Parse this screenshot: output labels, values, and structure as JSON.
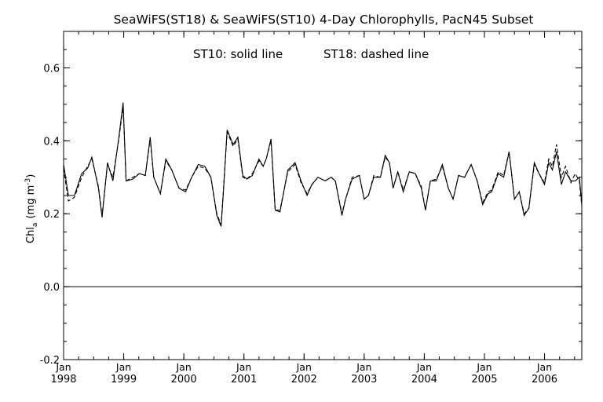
{
  "chart_data": {
    "type": "line",
    "title": "SeaWiFS(ST18) & SeaWiFS(ST10) 4-Day Chlorophylls, PacN45 Subset",
    "annotation_left": "ST10: solid line",
    "annotation_right": "ST18: dashed line",
    "ylabel_main": "Chl",
    "ylabel_sub": "a",
    "ylabel_units": "(mg m",
    "ylabel_exp": "-3",
    "ylabel_close": ")",
    "ylim": [
      -0.2,
      0.7
    ],
    "yticks": [
      -0.2,
      0.0,
      0.2,
      0.4,
      0.6
    ],
    "ytick_labels": [
      "-0.2",
      "0.0",
      "0.2",
      "0.4",
      "0.6"
    ],
    "xlim": [
      1998.0,
      2006.62
    ],
    "xticks": [
      {
        "x": 1998.0,
        "month": "Jan",
        "year": "1998"
      },
      {
        "x": 1999.0,
        "month": "Jan",
        "year": "1999"
      },
      {
        "x": 2000.0,
        "month": "Jan",
        "year": "2000"
      },
      {
        "x": 2001.0,
        "month": "Jan",
        "year": "2001"
      },
      {
        "x": 2002.0,
        "month": "Jan",
        "year": "2002"
      },
      {
        "x": 2003.0,
        "month": "Jan",
        "year": "2003"
      },
      {
        "x": 2004.0,
        "month": "Jan",
        "year": "2004"
      },
      {
        "x": 2005.0,
        "month": "Jan",
        "year": "2005"
      },
      {
        "x": 2006.0,
        "month": "Jan",
        "year": "2006"
      }
    ],
    "reference_line": 0.0,
    "grid": false,
    "series": [
      {
        "name": "ST10",
        "style": "solid",
        "color": "#000000",
        "x": [
          1998.0,
          1998.08,
          1998.18,
          1998.3,
          1998.4,
          1998.47,
          1998.58,
          1998.64,
          1998.73,
          1998.82,
          1998.92,
          1998.99,
          1999.04,
          1999.15,
          1999.26,
          1999.36,
          1999.44,
          1999.5,
          1999.61,
          1999.7,
          1999.8,
          1999.92,
          2000.03,
          2000.13,
          2000.24,
          2000.35,
          2000.45,
          2000.55,
          2000.62,
          2000.66,
          2000.72,
          2000.82,
          2000.9,
          2000.98,
          2001.05,
          2001.14,
          2001.25,
          2001.32,
          2001.37,
          2001.45,
          2001.52,
          2001.6,
          2001.73,
          2001.85,
          2001.95,
          2002.05,
          2002.13,
          2002.23,
          2002.35,
          2002.45,
          2002.52,
          2002.63,
          2002.69,
          2002.8,
          2002.92,
          2003.0,
          2003.07,
          2003.16,
          2003.27,
          2003.35,
          2003.42,
          2003.48,
          2003.56,
          2003.65,
          2003.75,
          2003.85,
          2003.95,
          2004.02,
          2004.1,
          2004.2,
          2004.3,
          2004.4,
          2004.48,
          2004.57,
          2004.67,
          2004.78,
          2004.88,
          2004.97,
          2005.06,
          2005.12,
          2005.23,
          2005.32,
          2005.41,
          2005.5,
          2005.58,
          2005.66,
          2005.74,
          2005.83,
          2005.91,
          2006.0,
          2006.07,
          2006.13,
          2006.2,
          2006.28,
          2006.35,
          2006.44,
          2006.51,
          2006.58,
          2006.62
        ],
        "y": [
          0.335,
          0.25,
          0.25,
          0.31,
          0.325,
          0.355,
          0.27,
          0.19,
          0.34,
          0.29,
          0.41,
          0.505,
          0.29,
          0.295,
          0.31,
          0.305,
          0.41,
          0.3,
          0.255,
          0.35,
          0.32,
          0.27,
          0.26,
          0.3,
          0.335,
          0.33,
          0.3,
          0.195,
          0.165,
          0.265,
          0.43,
          0.39,
          0.41,
          0.305,
          0.295,
          0.305,
          0.35,
          0.33,
          0.35,
          0.405,
          0.21,
          0.205,
          0.32,
          0.34,
          0.29,
          0.25,
          0.28,
          0.3,
          0.29,
          0.3,
          0.29,
          0.195,
          0.24,
          0.295,
          0.305,
          0.24,
          0.25,
          0.3,
          0.3,
          0.36,
          0.34,
          0.27,
          0.315,
          0.26,
          0.315,
          0.31,
          0.27,
          0.21,
          0.29,
          0.29,
          0.335,
          0.27,
          0.24,
          0.305,
          0.3,
          0.335,
          0.29,
          0.225,
          0.255,
          0.26,
          0.31,
          0.3,
          0.37,
          0.24,
          0.26,
          0.195,
          0.215,
          0.34,
          0.31,
          0.28,
          0.34,
          0.32,
          0.37,
          0.28,
          0.315,
          0.29,
          0.29,
          0.3,
          0.225
        ]
      },
      {
        "name": "ST18",
        "style": "dashed",
        "color": "#000000",
        "x": [
          1998.0,
          1998.08,
          1998.18,
          1998.3,
          1998.4,
          1998.47,
          1998.58,
          1998.64,
          1998.73,
          1998.82,
          1998.92,
          1998.99,
          1999.04,
          1999.15,
          1999.26,
          1999.36,
          1999.44,
          1999.5,
          1999.61,
          1999.7,
          1999.8,
          1999.92,
          2000.03,
          2000.13,
          2000.24,
          2000.35,
          2000.45,
          2000.55,
          2000.62,
          2000.66,
          2000.72,
          2000.82,
          2000.9,
          2000.98,
          2001.05,
          2001.14,
          2001.25,
          2001.32,
          2001.37,
          2001.45,
          2001.52,
          2001.6,
          2001.73,
          2001.85,
          2001.95,
          2002.05,
          2002.13,
          2002.23,
          2002.35,
          2002.45,
          2002.52,
          2002.63,
          2002.69,
          2002.8,
          2002.92,
          2003.0,
          2003.07,
          2003.16,
          2003.27,
          2003.35,
          2003.42,
          2003.48,
          2003.56,
          2003.65,
          2003.75,
          2003.85,
          2003.95,
          2004.02,
          2004.1,
          2004.2,
          2004.3,
          2004.4,
          2004.48,
          2004.57,
          2004.67,
          2004.78,
          2004.88,
          2004.97,
          2005.06,
          2005.12,
          2005.23,
          2005.32,
          2005.41,
          2005.5,
          2005.58,
          2005.66,
          2005.74,
          2005.83,
          2005.91,
          2006.0,
          2006.07,
          2006.13,
          2006.2,
          2006.28,
          2006.35,
          2006.44,
          2006.51,
          2006.58,
          2006.62
        ],
        "y": [
          0.325,
          0.235,
          0.245,
          0.3,
          0.33,
          0.35,
          0.275,
          0.195,
          0.335,
          0.3,
          0.405,
          0.495,
          0.29,
          0.3,
          0.31,
          0.305,
          0.405,
          0.3,
          0.255,
          0.345,
          0.32,
          0.27,
          0.265,
          0.3,
          0.33,
          0.325,
          0.3,
          0.2,
          0.17,
          0.27,
          0.425,
          0.385,
          0.405,
          0.3,
          0.295,
          0.31,
          0.345,
          0.33,
          0.35,
          0.4,
          0.21,
          0.21,
          0.315,
          0.335,
          0.285,
          0.255,
          0.28,
          0.3,
          0.29,
          0.3,
          0.29,
          0.2,
          0.24,
          0.3,
          0.305,
          0.24,
          0.25,
          0.305,
          0.3,
          0.355,
          0.34,
          0.27,
          0.315,
          0.265,
          0.315,
          0.31,
          0.275,
          0.21,
          0.29,
          0.295,
          0.33,
          0.27,
          0.24,
          0.305,
          0.3,
          0.335,
          0.29,
          0.23,
          0.26,
          0.265,
          0.315,
          0.305,
          0.37,
          0.24,
          0.26,
          0.2,
          0.215,
          0.335,
          0.31,
          0.285,
          0.35,
          0.33,
          0.39,
          0.3,
          0.33,
          0.285,
          0.31,
          0.29,
          0.22
        ]
      }
    ]
  }
}
